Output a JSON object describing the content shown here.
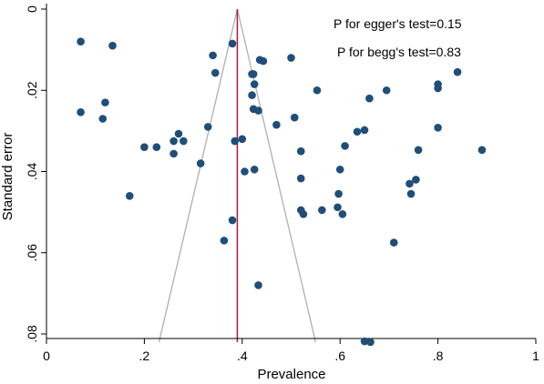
{
  "chart_data": {
    "type": "scatter",
    "title": "",
    "xlabel": "Prevalence",
    "ylabel": "Standard error",
    "xlim": [
      0,
      1
    ],
    "ylim": [
      0.082,
      0
    ],
    "y_reversed": true,
    "grid": false,
    "legend": "none",
    "x_ticks": [
      0,
      0.2,
      0.4,
      0.6,
      0.8,
      1
    ],
    "x_tick_labels": [
      "0",
      ".2",
      ".4",
      ".6",
      ".8",
      "1"
    ],
    "y_ticks": [
      0,
      0.02,
      0.04,
      0.06,
      0.08
    ],
    "y_tick_labels": [
      "0",
      ".02",
      ".04",
      ".06",
      ".08"
    ],
    "annotations": [
      "P for egger's test=0.15",
      "P for begg's test=0.83"
    ],
    "pooled_estimate": 0.39,
    "funnel": {
      "apex": [
        0.39,
        0
      ],
      "left_base": [
        0.23,
        0.082
      ],
      "right_base": [
        0.55,
        0.082
      ]
    },
    "colors": {
      "points": "#1f4e79",
      "pooled_line": "#b2173a",
      "funnel": "#b0b0b0",
      "axes": "#000000"
    },
    "series": [
      {
        "x": [
          0.07,
          0.135,
          0.07,
          0.115,
          0.12,
          0.17,
          0.2,
          0.225,
          0.26,
          0.26,
          0.27,
          0.28,
          0.315,
          0.33,
          0.34,
          0.345,
          0.38,
          0.385,
          0.38,
          0.363,
          0.4,
          0.405,
          0.42,
          0.423,
          0.423,
          0.42,
          0.425,
          0.425,
          0.433,
          0.436,
          0.443,
          0.433,
          0.47,
          0.5,
          0.507,
          0.52,
          0.52,
          0.525,
          0.52,
          0.553,
          0.563,
          0.595,
          0.6,
          0.597,
          0.605,
          0.61,
          0.635,
          0.65,
          0.66,
          0.662,
          0.695,
          0.71,
          0.742,
          0.745,
          0.755,
          0.76,
          0.8,
          0.8,
          0.8,
          0.84,
          0.89,
          0.65
        ],
        "y": [
          0.008,
          0.009,
          0.0254,
          0.027,
          0.023,
          0.046,
          0.034,
          0.034,
          0.0356,
          0.0325,
          0.0307,
          0.0325,
          0.038,
          0.029,
          0.0114,
          0.0157,
          0.0085,
          0.0325,
          0.052,
          0.057,
          0.032,
          0.04,
          0.016,
          0.016,
          0.0246,
          0.0212,
          0.0185,
          0.0395,
          0.068,
          0.0125,
          0.0128,
          0.025,
          0.0285,
          0.012,
          0.0267,
          0.035,
          0.0417,
          0.0505,
          0.0495,
          0.02,
          0.0495,
          0.0488,
          0.0395,
          0.0455,
          0.0505,
          0.0337,
          0.0302,
          0.0298,
          0.022,
          0.082,
          0.02,
          0.0575,
          0.043,
          0.0455,
          0.042,
          0.0347,
          0.0185,
          0.0195,
          0.0292,
          0.0155,
          0.0347,
          0.0818
        ]
      }
    ]
  }
}
